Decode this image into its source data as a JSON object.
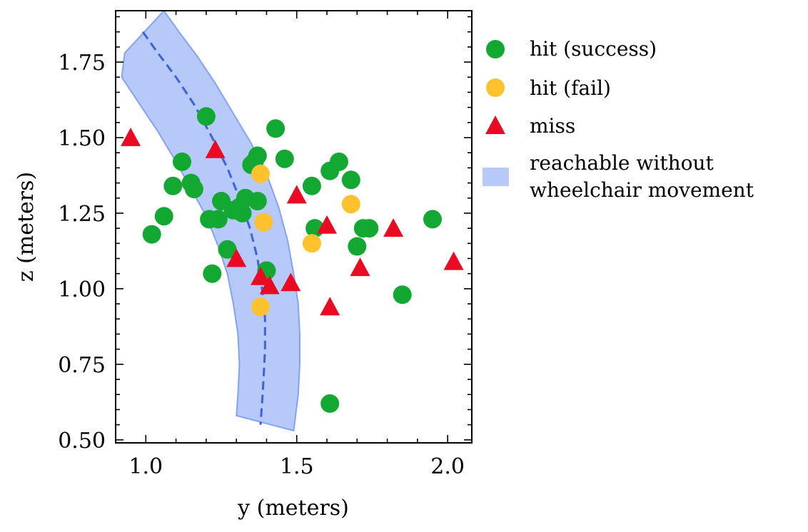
{
  "chart_data": {
    "type": "scatter",
    "xlabel": "y (meters)",
    "ylabel": "z (meters)",
    "xlim": [
      0.9,
      2.08
    ],
    "ylim": [
      0.49,
      1.92
    ],
    "xticks": [
      1.0,
      1.5,
      2.0
    ],
    "xtick_labels": [
      "1.0",
      "1.5",
      "2.0"
    ],
    "yticks": [
      0.5,
      0.75,
      1.0,
      1.25,
      1.5,
      1.75
    ],
    "ytick_labels": [
      "0.50",
      "0.75",
      "1.00",
      "1.25",
      "1.50",
      "1.75"
    ],
    "grid": false,
    "legend_position": "outside-right",
    "band": {
      "name": "reachable without wheelchair movement",
      "color": "#6f94f2",
      "center_line": [
        [
          0.99,
          1.85
        ],
        [
          1.04,
          1.78
        ],
        [
          1.1,
          1.7
        ],
        [
          1.16,
          1.61
        ],
        [
          1.22,
          1.5
        ],
        [
          1.27,
          1.4
        ],
        [
          1.31,
          1.3
        ],
        [
          1.345,
          1.2
        ],
        [
          1.37,
          1.1
        ],
        [
          1.385,
          1.0
        ],
        [
          1.395,
          0.9
        ],
        [
          1.395,
          0.8
        ],
        [
          1.39,
          0.7
        ],
        [
          1.385,
          0.62
        ],
        [
          1.38,
          0.55
        ]
      ],
      "outer_edge": [
        [
          1.06,
          1.92
        ],
        [
          1.11,
          1.85
        ],
        [
          1.17,
          1.77
        ],
        [
          1.23,
          1.68
        ],
        [
          1.29,
          1.58
        ],
        [
          1.35,
          1.48
        ],
        [
          1.4,
          1.38
        ],
        [
          1.44,
          1.27
        ],
        [
          1.47,
          1.16
        ],
        [
          1.49,
          1.05
        ],
        [
          1.505,
          0.95
        ],
        [
          1.51,
          0.85
        ],
        [
          1.51,
          0.75
        ],
        [
          1.505,
          0.65
        ],
        [
          1.49,
          0.53
        ]
      ],
      "inner_edge": [
        [
          1.3,
          0.58
        ],
        [
          1.305,
          0.65
        ],
        [
          1.31,
          0.75
        ],
        [
          1.305,
          0.85
        ],
        [
          1.29,
          0.95
        ],
        [
          1.27,
          1.05
        ],
        [
          1.24,
          1.14
        ],
        [
          1.2,
          1.24
        ],
        [
          1.15,
          1.33
        ],
        [
          1.1,
          1.42
        ],
        [
          1.04,
          1.52
        ],
        [
          0.98,
          1.61
        ],
        [
          0.92,
          1.7
        ],
        [
          0.93,
          1.78
        ]
      ]
    },
    "series": [
      {
        "name": "hit (success)",
        "marker": "circle",
        "color": "#13a832",
        "points": [
          [
            1.02,
            1.18
          ],
          [
            1.06,
            1.24
          ],
          [
            1.09,
            1.34
          ],
          [
            1.12,
            1.42
          ],
          [
            1.15,
            1.35
          ],
          [
            1.16,
            1.33
          ],
          [
            1.2,
            1.57
          ],
          [
            1.21,
            1.23
          ],
          [
            1.22,
            1.05
          ],
          [
            1.24,
            1.23
          ],
          [
            1.25,
            1.29
          ],
          [
            1.27,
            1.13
          ],
          [
            1.29,
            1.26
          ],
          [
            1.31,
            1.27
          ],
          [
            1.32,
            1.25
          ],
          [
            1.33,
            1.3
          ],
          [
            1.35,
            1.41
          ],
          [
            1.36,
            1.42
          ],
          [
            1.37,
            1.44
          ],
          [
            1.37,
            1.29
          ],
          [
            1.4,
            1.06
          ],
          [
            1.43,
            1.53
          ],
          [
            1.46,
            1.43
          ],
          [
            1.55,
            1.34
          ],
          [
            1.56,
            1.2
          ],
          [
            1.61,
            1.39
          ],
          [
            1.64,
            1.42
          ],
          [
            1.68,
            1.36
          ],
          [
            1.7,
            1.14
          ],
          [
            1.72,
            1.2
          ],
          [
            1.74,
            1.2
          ],
          [
            1.85,
            0.98
          ],
          [
            1.95,
            1.23
          ],
          [
            1.61,
            0.62
          ]
        ]
      },
      {
        "name": "hit (fail)",
        "marker": "circle",
        "color": "#fdc22e",
        "points": [
          [
            1.38,
            1.38
          ],
          [
            1.39,
            1.22
          ],
          [
            1.38,
            0.94
          ],
          [
            1.55,
            1.15
          ],
          [
            1.68,
            1.28
          ]
        ]
      },
      {
        "name": "miss",
        "marker": "triangle",
        "color": "#ea0b22",
        "points": [
          [
            0.95,
            1.5
          ],
          [
            1.23,
            1.46
          ],
          [
            1.3,
            1.1
          ],
          [
            1.38,
            1.04
          ],
          [
            1.41,
            1.01
          ],
          [
            1.48,
            1.02
          ],
          [
            1.5,
            1.31
          ],
          [
            1.6,
            1.21
          ],
          [
            1.61,
            0.94
          ],
          [
            1.71,
            1.07
          ],
          [
            1.82,
            1.2
          ],
          [
            2.02,
            1.09
          ]
        ]
      }
    ],
    "legend_entries": [
      "hit (success)",
      "hit (fail)",
      "miss",
      "reachable without",
      "wheelchair movement"
    ]
  }
}
